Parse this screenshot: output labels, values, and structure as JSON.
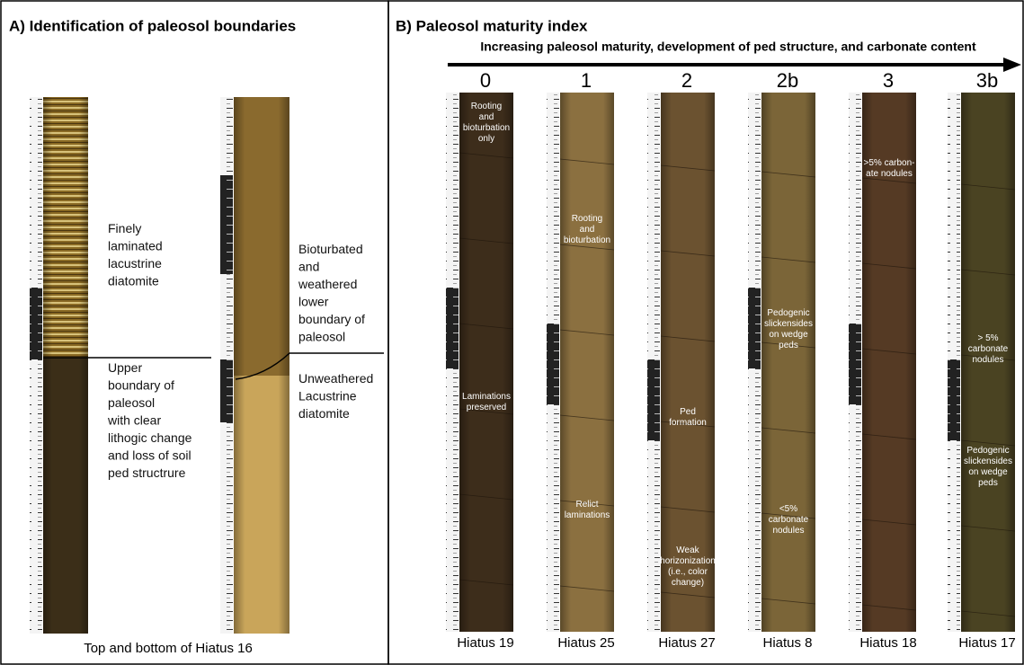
{
  "panel_a": {
    "title": "A) Identification of paleosol boundaries",
    "annotations": [
      {
        "lines": [
          "Finely",
          "laminated",
          "lacustrine",
          "diatomite"
        ]
      },
      {
        "lines": [
          "Upper",
          "boundary of",
          "paleosol",
          "with clear",
          "lithogic change",
          "and loss of soil",
          "ped structrure"
        ]
      },
      {
        "lines": [
          "Bioturbated",
          "and",
          "weathered",
          "lower",
          "boundary of",
          "paleosol"
        ]
      },
      {
        "lines": [
          "Unweathered",
          "Lacustrine",
          "diatomite"
        ]
      }
    ],
    "caption": "Top and bottom of Hiatus 16"
  },
  "panel_b": {
    "title": "B) Paleosol maturity index",
    "axis_label": "Increasing paleosol maturity, development of ped structure, and carbonate content",
    "columns": [
      {
        "index": "0",
        "core": "Hiatus 19",
        "annotations": [
          {
            "lines": [
              "Rooting",
              "and",
              "bioturbation",
              "only"
            ]
          },
          {
            "lines": [
              "Laminations",
              "preserved"
            ]
          }
        ]
      },
      {
        "index": "1",
        "core": "Hiatus 25",
        "annotations": [
          {
            "lines": [
              "Rooting",
              "and",
              "bioturbation"
            ]
          },
          {
            "lines": [
              "Relict",
              "laminations"
            ]
          }
        ]
      },
      {
        "index": "2",
        "core": "Hiatus 27",
        "annotations": [
          {
            "lines": [
              "Ped",
              "formation"
            ]
          },
          {
            "lines": [
              "Weak",
              "horizonization",
              "(i.e., color",
              "change)"
            ]
          }
        ]
      },
      {
        "index": "2b",
        "core": "Hiatus 8",
        "annotations": [
          {
            "lines": [
              "Pedogenic",
              "slickensides",
              "on wedge",
              "peds"
            ]
          },
          {
            "lines": [
              "<5%",
              "carbonate",
              "nodules"
            ]
          }
        ]
      },
      {
        "index": "3",
        "core": "Hiatus 18",
        "annotations": [
          {
            "lines": [
              ">5% carbon-",
              "ate nodules"
            ]
          }
        ]
      },
      {
        "index": "3b",
        "core": "Hiatus 17",
        "annotations": [
          {
            "lines": [
              "> 5%",
              "carbonate",
              "nodules"
            ]
          },
          {
            "lines": [
              "Pedogenic",
              "slickensides",
              "on wedge",
              "peds"
            ]
          }
        ]
      }
    ]
  }
}
